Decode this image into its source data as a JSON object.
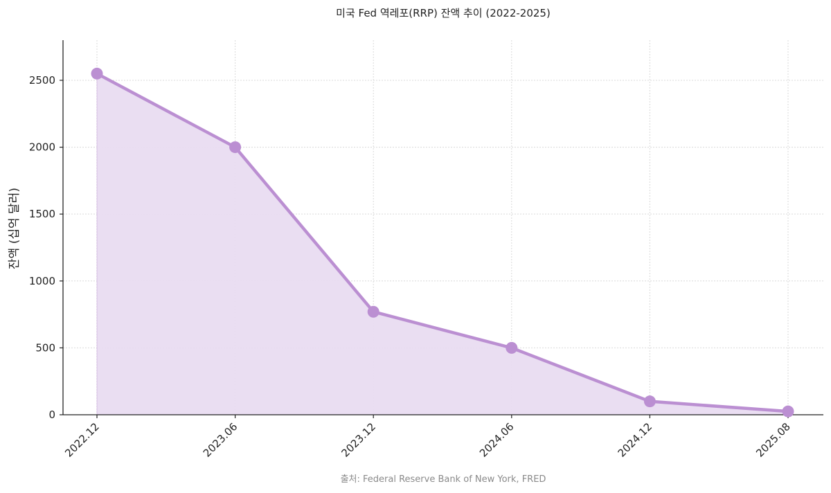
{
  "chart_data": {
    "type": "area",
    "title": "미국 Fed 역레포(RRP) 잔액 추이 (2022-2025)",
    "xlabel": "",
    "ylabel": "잔액 (십억 달러)",
    "categories": [
      "2022.12",
      "2023.06",
      "2023.12",
      "2024.06",
      "2024.12",
      "2025.08"
    ],
    "series": [
      {
        "values": [
          2550,
          2000,
          770,
          500,
          100,
          25
        ]
      }
    ],
    "ylim": [
      0,
      2800
    ],
    "yticks": [
      0,
      500,
      1000,
      1500,
      2000,
      2500
    ],
    "grid": true,
    "source": "출처: Federal Reserve Bank of New York, FRED",
    "colors": {
      "line": "#bb8fd2",
      "fill": "#e9dcf1",
      "marker": "#bb8fd2"
    }
  }
}
